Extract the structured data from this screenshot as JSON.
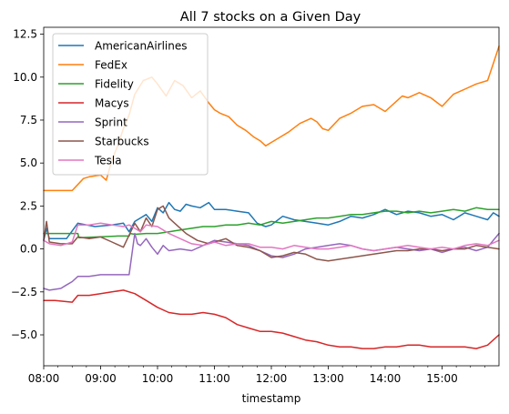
{
  "chart_data": {
    "type": "line",
    "title": "All 7 stocks on a Given Day",
    "xlabel": "timestamp",
    "ylabel": "",
    "x_ticks": [
      "08:00",
      "09:00",
      "10:00",
      "11:00",
      "12:00",
      "13:00",
      "14:00",
      "15:00"
    ],
    "x_range_hours": [
      8.0,
      16.0
    ],
    "y_ticks": [
      "−5.0",
      "−2.5",
      "0.0",
      "2.5",
      "5.0",
      "7.5",
      "10.0",
      "12.5"
    ],
    "y_tick_values": [
      -5.0,
      -2.5,
      0.0,
      2.5,
      5.0,
      7.5,
      10.0,
      12.5
    ],
    "ylim": [
      -6.8,
      12.9
    ],
    "grid": false,
    "legend_position": "upper-left",
    "series": [
      {
        "name": "AmericanAirlines",
        "color": "#1f77b4",
        "x": [
          8.0,
          8.05,
          8.1,
          8.4,
          8.6,
          8.9,
          9.2,
          9.4,
          9.5,
          9.6,
          9.7,
          9.8,
          9.9,
          10.0,
          10.1,
          10.2,
          10.3,
          10.4,
          10.5,
          10.6,
          10.75,
          10.9,
          11.0,
          11.2,
          11.4,
          11.6,
          11.75,
          11.9,
          12.0,
          12.2,
          12.4,
          12.6,
          12.8,
          13.0,
          13.2,
          13.4,
          13.6,
          13.8,
          14.0,
          14.2,
          14.4,
          14.6,
          14.8,
          15.0,
          15.2,
          15.4,
          15.6,
          15.8,
          15.9,
          16.0
        ],
        "y": [
          0.5,
          1.2,
          0.6,
          0.6,
          1.5,
          1.3,
          1.4,
          1.5,
          1.0,
          1.6,
          1.8,
          2.0,
          1.6,
          2.4,
          2.1,
          2.7,
          2.3,
          2.2,
          2.6,
          2.5,
          2.4,
          2.7,
          2.3,
          2.3,
          2.2,
          2.1,
          1.5,
          1.3,
          1.4,
          1.9,
          1.7,
          1.6,
          1.5,
          1.4,
          1.6,
          1.9,
          1.8,
          2.0,
          2.3,
          2.0,
          2.2,
          2.1,
          1.9,
          2.0,
          1.7,
          2.1,
          1.9,
          1.7,
          2.1,
          1.9
        ]
      },
      {
        "name": "FedEx",
        "color": "#ff7f0e",
        "x": [
          8.0,
          8.5,
          8.7,
          8.8,
          9.0,
          9.1,
          9.2,
          9.3,
          9.4,
          9.5,
          9.6,
          9.75,
          9.9,
          10.0,
          10.15,
          10.3,
          10.45,
          10.6,
          10.75,
          10.9,
          11.0,
          11.1,
          11.25,
          11.4,
          11.55,
          11.7,
          11.8,
          11.9,
          12.0,
          12.15,
          12.3,
          12.5,
          12.7,
          12.8,
          12.9,
          13.0,
          13.2,
          13.4,
          13.6,
          13.8,
          14.0,
          14.2,
          14.3,
          14.4,
          14.6,
          14.8,
          15.0,
          15.2,
          15.4,
          15.6,
          15.8,
          15.9,
          16.0
        ],
        "y": [
          3.4,
          3.4,
          4.1,
          4.2,
          4.3,
          4.0,
          5.2,
          6.0,
          7.0,
          7.8,
          9.0,
          9.8,
          10.0,
          9.6,
          8.9,
          9.8,
          9.5,
          8.8,
          9.2,
          8.5,
          8.1,
          7.9,
          7.7,
          7.2,
          6.9,
          6.5,
          6.3,
          6.0,
          6.2,
          6.5,
          6.8,
          7.3,
          7.6,
          7.4,
          7.0,
          6.9,
          7.6,
          7.9,
          8.3,
          8.4,
          8.0,
          8.6,
          8.9,
          8.8,
          9.1,
          8.8,
          8.3,
          9.0,
          9.3,
          9.6,
          9.8,
          10.8,
          11.8
        ]
      },
      {
        "name": "Fidelity",
        "color": "#2ca02c",
        "x": [
          8.0,
          8.6,
          8.62,
          9.3,
          9.5,
          9.52,
          9.6,
          9.8,
          10.0,
          10.2,
          10.4,
          10.6,
          10.8,
          11.0,
          11.2,
          11.4,
          11.6,
          11.8,
          12.0,
          12.2,
          12.4,
          12.6,
          12.8,
          13.0,
          13.2,
          13.4,
          13.6,
          13.8,
          14.0,
          14.2,
          14.4,
          14.6,
          14.8,
          15.0,
          15.2,
          15.4,
          15.6,
          15.8,
          16.0
        ],
        "y": [
          0.9,
          0.9,
          0.65,
          0.75,
          0.75,
          0.9,
          0.85,
          0.9,
          0.9,
          1.0,
          1.1,
          1.2,
          1.3,
          1.3,
          1.4,
          1.4,
          1.5,
          1.4,
          1.6,
          1.5,
          1.6,
          1.7,
          1.8,
          1.8,
          1.9,
          2.0,
          2.0,
          2.1,
          2.2,
          2.2,
          2.1,
          2.2,
          2.1,
          2.2,
          2.3,
          2.2,
          2.4,
          2.3,
          2.3
        ]
      },
      {
        "name": "Macys",
        "color": "#d62728",
        "x": [
          8.0,
          8.2,
          8.5,
          8.6,
          8.8,
          9.0,
          9.2,
          9.4,
          9.6,
          9.8,
          10.0,
          10.2,
          10.4,
          10.6,
          10.8,
          11.0,
          11.2,
          11.4,
          11.6,
          11.8,
          12.0,
          12.2,
          12.4,
          12.6,
          12.8,
          13.0,
          13.2,
          13.4,
          13.6,
          13.8,
          14.0,
          14.2,
          14.4,
          14.6,
          14.8,
          15.0,
          15.2,
          15.4,
          15.6,
          15.8,
          16.0
        ],
        "y": [
          -3.0,
          -3.0,
          -3.1,
          -2.7,
          -2.7,
          -2.6,
          -2.5,
          -2.4,
          -2.6,
          -3.0,
          -3.4,
          -3.7,
          -3.8,
          -3.8,
          -3.7,
          -3.8,
          -4.0,
          -4.4,
          -4.6,
          -4.8,
          -4.8,
          -4.9,
          -5.1,
          -5.3,
          -5.4,
          -5.6,
          -5.7,
          -5.7,
          -5.8,
          -5.8,
          -5.7,
          -5.7,
          -5.6,
          -5.6,
          -5.7,
          -5.7,
          -5.7,
          -5.7,
          -5.8,
          -5.6,
          -5.0
        ]
      },
      {
        "name": "Sprint",
        "color": "#9467bd",
        "x": [
          8.0,
          8.1,
          8.3,
          8.4,
          8.5,
          8.6,
          8.8,
          9.0,
          9.2,
          9.4,
          9.5,
          9.6,
          9.65,
          9.7,
          9.8,
          9.9,
          10.0,
          10.1,
          10.2,
          10.4,
          10.6,
          10.8,
          11.0,
          11.2,
          11.4,
          11.6,
          11.8,
          12.0,
          12.2,
          12.4,
          12.6,
          12.8,
          13.0,
          13.2,
          13.4,
          13.6,
          13.8,
          14.0,
          14.2,
          14.4,
          14.6,
          14.8,
          15.0,
          15.2,
          15.4,
          15.6,
          15.8,
          16.0
        ],
        "y": [
          -2.3,
          -2.4,
          -2.3,
          -2.1,
          -1.9,
          -1.6,
          -1.6,
          -1.5,
          -1.5,
          -1.5,
          -1.5,
          0.9,
          0.3,
          0.2,
          0.6,
          0.1,
          -0.3,
          0.2,
          -0.1,
          0.0,
          -0.1,
          0.2,
          0.5,
          0.4,
          0.3,
          0.2,
          -0.1,
          -0.4,
          -0.5,
          -0.3,
          0.0,
          0.1,
          0.2,
          0.3,
          0.2,
          0.0,
          -0.1,
          0.0,
          0.1,
          0.0,
          -0.1,
          0.0,
          -0.2,
          0.0,
          0.1,
          -0.1,
          0.1,
          0.9
        ]
      },
      {
        "name": "Starbucks",
        "color": "#8c564b",
        "x": [
          8.0,
          8.05,
          8.1,
          8.3,
          8.4,
          8.5,
          8.6,
          8.8,
          9.0,
          9.2,
          9.4,
          9.6,
          9.7,
          9.8,
          9.9,
          10.0,
          10.1,
          10.2,
          10.3,
          10.5,
          10.7,
          10.9,
          11.0,
          11.2,
          11.4,
          11.6,
          11.8,
          12.0,
          12.2,
          12.4,
          12.6,
          12.8,
          13.0,
          13.2,
          13.4,
          13.6,
          13.8,
          14.0,
          14.2,
          14.4,
          14.6,
          14.8,
          15.0,
          15.2,
          15.4,
          15.6,
          15.8,
          16.0
        ],
        "y": [
          0.5,
          1.6,
          0.4,
          0.3,
          0.3,
          0.3,
          0.7,
          0.6,
          0.7,
          0.4,
          0.1,
          1.5,
          1.0,
          1.8,
          1.3,
          2.3,
          2.5,
          1.8,
          1.5,
          0.9,
          0.5,
          0.3,
          0.4,
          0.6,
          0.2,
          0.1,
          -0.1,
          -0.5,
          -0.4,
          -0.2,
          -0.3,
          -0.6,
          -0.7,
          -0.6,
          -0.5,
          -0.4,
          -0.3,
          -0.2,
          -0.1,
          -0.1,
          0.0,
          0.0,
          -0.1,
          0.0,
          0.0,
          0.2,
          0.1,
          0.0
        ]
      },
      {
        "name": "Tesla",
        "color": "#e377c2",
        "x": [
          8.0,
          8.1,
          8.3,
          8.5,
          8.6,
          8.8,
          9.0,
          9.2,
          9.4,
          9.5,
          9.6,
          9.7,
          9.8,
          10.0,
          10.2,
          10.4,
          10.6,
          10.8,
          11.0,
          11.2,
          11.4,
          11.6,
          11.8,
          12.0,
          12.2,
          12.4,
          12.6,
          12.8,
          13.0,
          13.2,
          13.4,
          13.6,
          13.8,
          14.0,
          14.2,
          14.4,
          14.6,
          14.8,
          15.0,
          15.2,
          15.4,
          15.6,
          15.8,
          16.0
        ],
        "y": [
          0.5,
          0.3,
          0.2,
          0.4,
          1.4,
          1.4,
          1.5,
          1.4,
          1.3,
          1.4,
          1.2,
          1.0,
          1.4,
          1.3,
          0.9,
          0.6,
          0.3,
          0.2,
          0.4,
          0.2,
          0.3,
          0.3,
          0.1,
          0.1,
          0.0,
          0.2,
          0.1,
          0.0,
          0.0,
          0.1,
          0.2,
          0.0,
          -0.1,
          0.0,
          0.1,
          0.2,
          0.1,
          0.0,
          0.1,
          0.0,
          0.2,
          0.3,
          0.2,
          0.5
        ]
      }
    ]
  }
}
